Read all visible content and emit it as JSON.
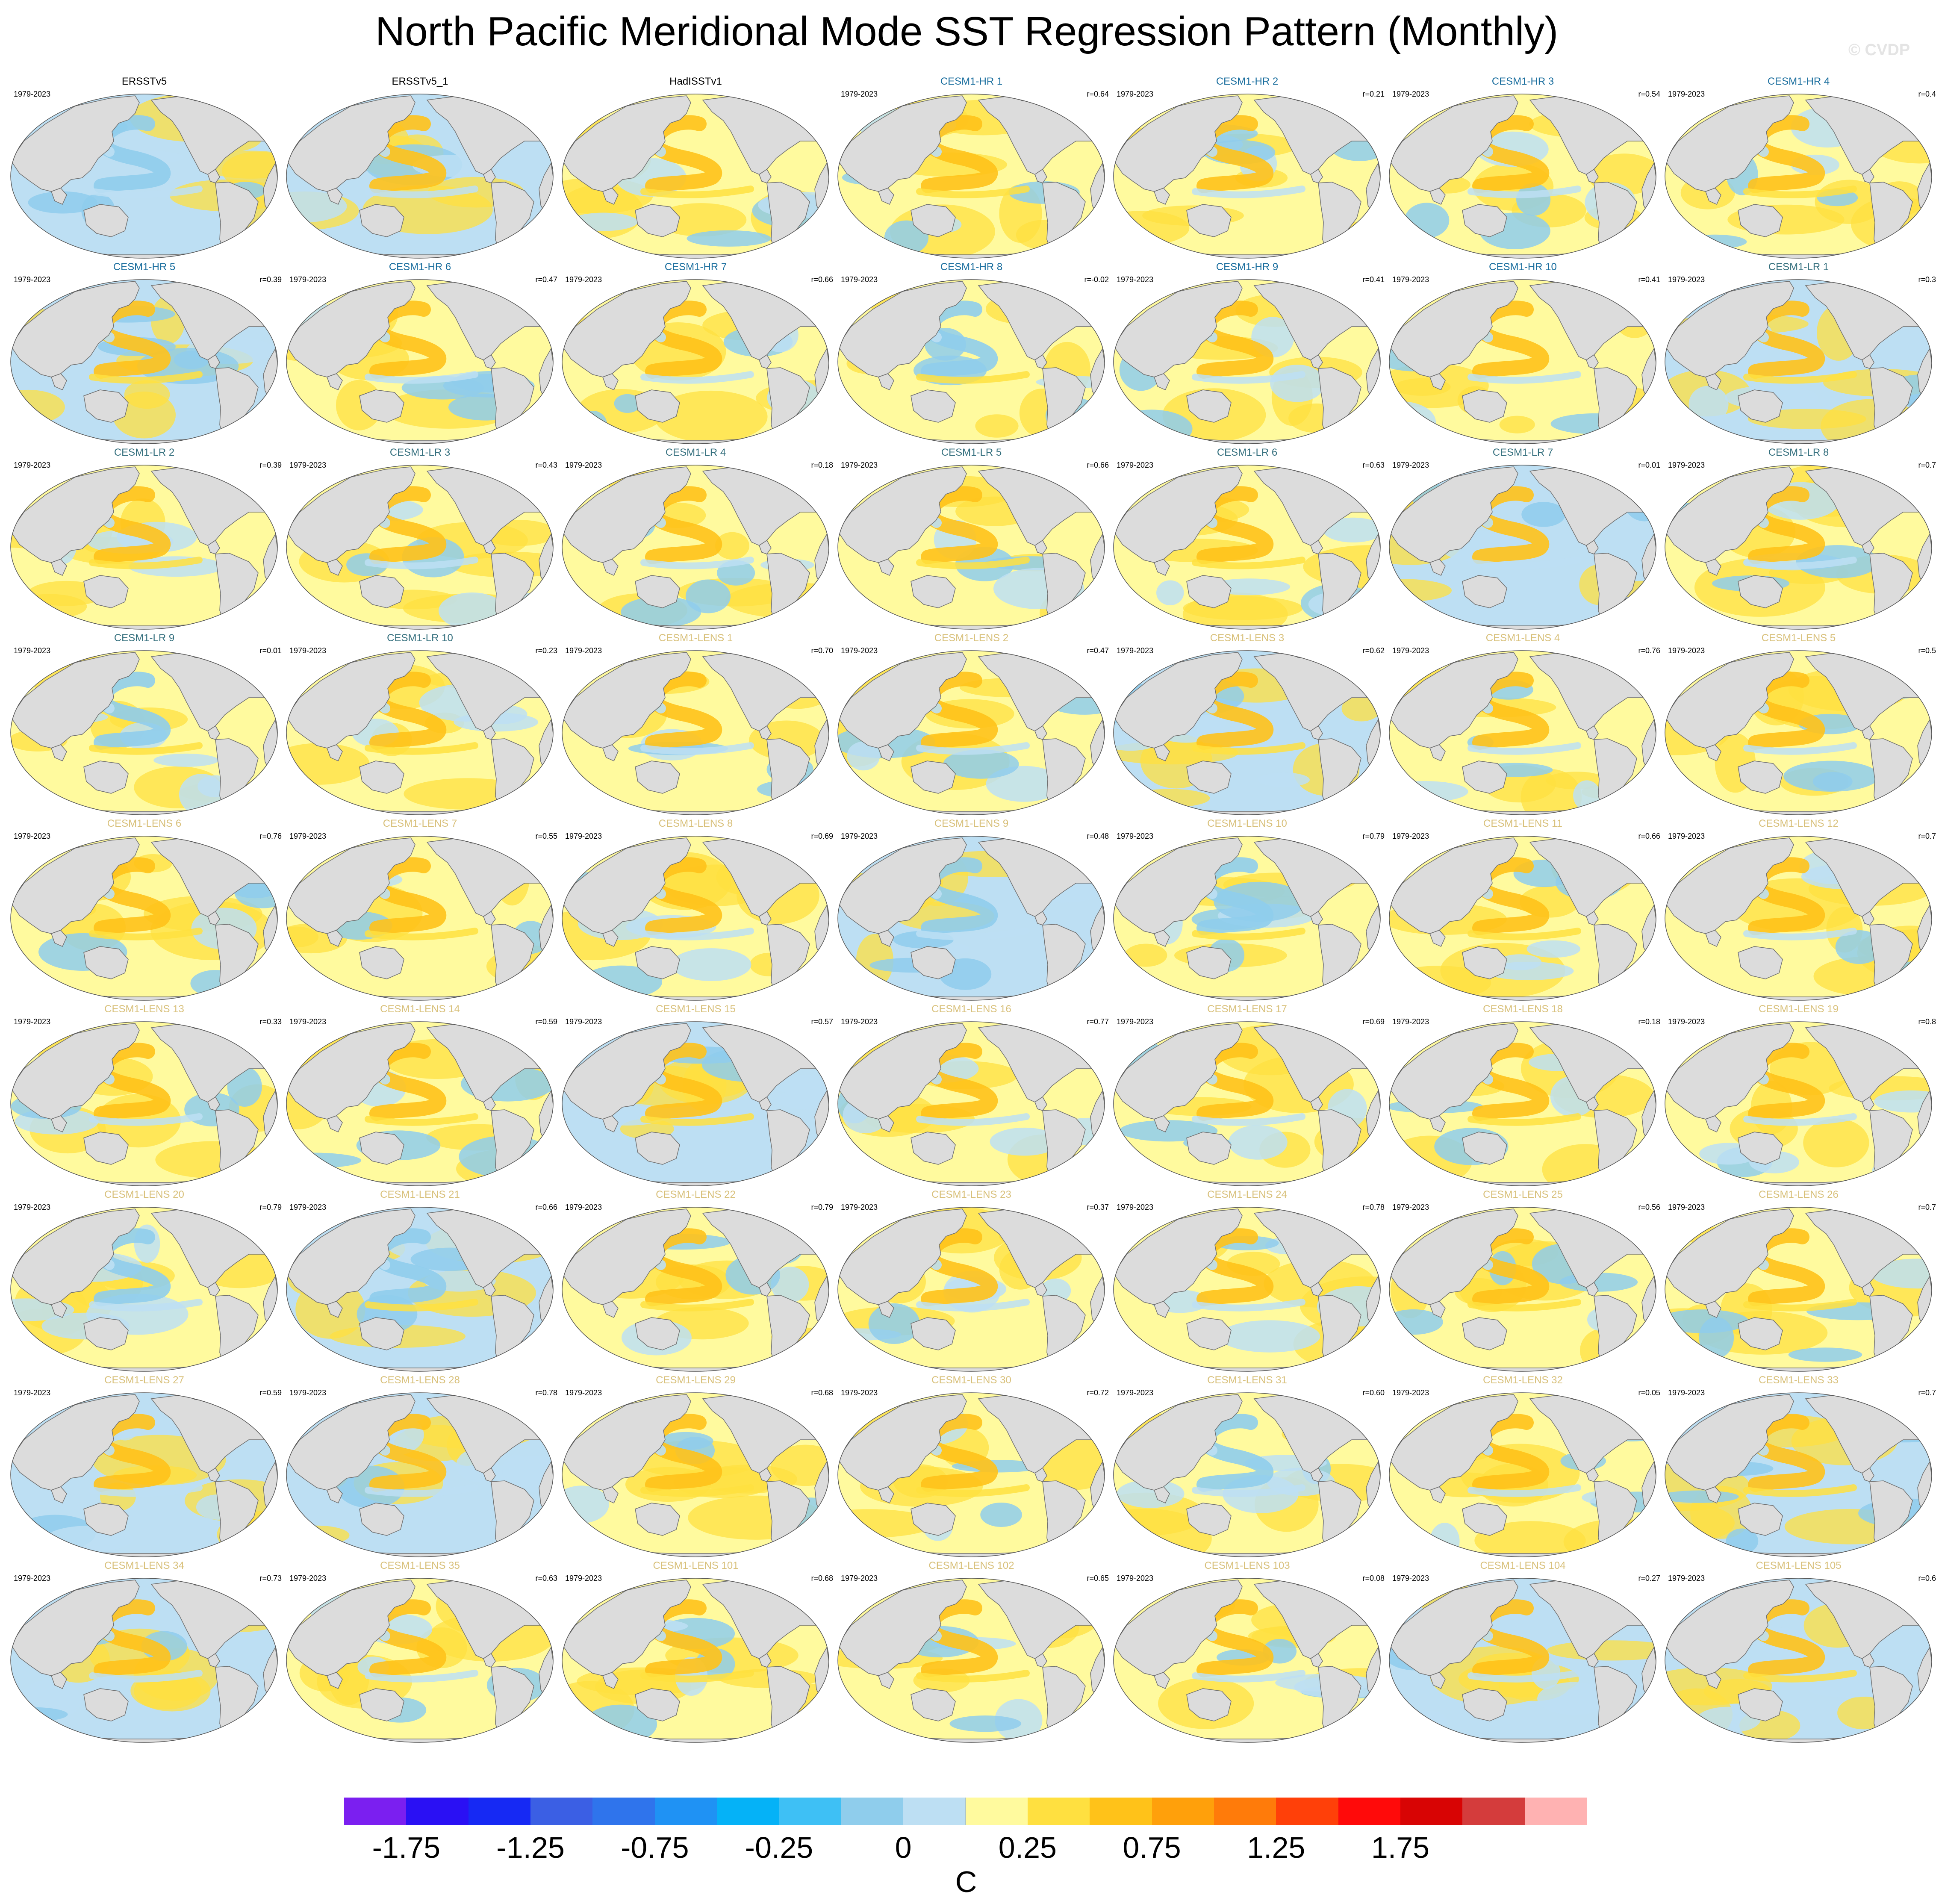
{
  "title": "North Pacific Meridional Mode SST Regression Pattern (Monthly)",
  "watermark": "© CVDP",
  "colors": {
    "obs_title": "#000000",
    "hr_title": "#1a6e9e",
    "lr_title": "#35707e",
    "lens_title": "#d8c07a",
    "land": "#dcdcdc",
    "coast": "#707070"
  },
  "panels": [
    {
      "title": "ERSSTv5",
      "group": "obs",
      "years": "1979-2023",
      "r": ""
    },
    {
      "title": "ERSSTv5_1",
      "group": "obs",
      "years": "",
      "r": ""
    },
    {
      "title": "HadISSTv1",
      "group": "obs",
      "years": "",
      "r": ""
    },
    {
      "title": "CESM1-HR 1",
      "group": "hr",
      "years": "1979-2023",
      "r": "r=0.64"
    },
    {
      "title": "CESM1-HR 2",
      "group": "hr",
      "years": "1979-2023",
      "r": "r=0.21"
    },
    {
      "title": "CESM1-HR 3",
      "group": "hr",
      "years": "1979-2023",
      "r": "r=0.54"
    },
    {
      "title": "CESM1-HR 4",
      "group": "hr",
      "years": "1979-2023",
      "r": "r=0.4"
    },
    {
      "title": "CESM1-HR 5",
      "group": "hr",
      "years": "1979-2023",
      "r": "r=0.39"
    },
    {
      "title": "CESM1-HR 6",
      "group": "hr",
      "years": "1979-2023",
      "r": "r=0.47"
    },
    {
      "title": "CESM1-HR 7",
      "group": "hr",
      "years": "1979-2023",
      "r": "r=0.66"
    },
    {
      "title": "CESM1-HR 8",
      "group": "hr",
      "years": "1979-2023",
      "r": "r=-0.02"
    },
    {
      "title": "CESM1-HR 9",
      "group": "hr",
      "years": "1979-2023",
      "r": "r=0.41"
    },
    {
      "title": "CESM1-HR 10",
      "group": "hr",
      "years": "1979-2023",
      "r": "r=0.41"
    },
    {
      "title": "CESM1-LR 1",
      "group": "lr",
      "years": "1979-2023",
      "r": "r=0.3"
    },
    {
      "title": "CESM1-LR 2",
      "group": "lr",
      "years": "1979-2023",
      "r": "r=0.39"
    },
    {
      "title": "CESM1-LR 3",
      "group": "lr",
      "years": "1979-2023",
      "r": "r=0.43"
    },
    {
      "title": "CESM1-LR 4",
      "group": "lr",
      "years": "1979-2023",
      "r": "r=0.18"
    },
    {
      "title": "CESM1-LR 5",
      "group": "lr",
      "years": "1979-2023",
      "r": "r=0.66"
    },
    {
      "title": "CESM1-LR 6",
      "group": "lr",
      "years": "1979-2023",
      "r": "r=0.63"
    },
    {
      "title": "CESM1-LR 7",
      "group": "lr",
      "years": "1979-2023",
      "r": "r=0.01"
    },
    {
      "title": "CESM1-LR 8",
      "group": "lr",
      "years": "1979-2023",
      "r": "r=0.7"
    },
    {
      "title": "CESM1-LR 9",
      "group": "lr",
      "years": "1979-2023",
      "r": "r=0.01"
    },
    {
      "title": "CESM1-LR 10",
      "group": "lr",
      "years": "1979-2023",
      "r": "r=0.23"
    },
    {
      "title": "CESM1-LENS 1",
      "group": "lens",
      "years": "1979-2023",
      "r": "r=0.70"
    },
    {
      "title": "CESM1-LENS 2",
      "group": "lens",
      "years": "1979-2023",
      "r": "r=0.47"
    },
    {
      "title": "CESM1-LENS 3",
      "group": "lens",
      "years": "1979-2023",
      "r": "r=0.62"
    },
    {
      "title": "CESM1-LENS 4",
      "group": "lens",
      "years": "1979-2023",
      "r": "r=0.76"
    },
    {
      "title": "CESM1-LENS 5",
      "group": "lens",
      "years": "1979-2023",
      "r": "r=0.5"
    },
    {
      "title": "CESM1-LENS 6",
      "group": "lens",
      "years": "1979-2023",
      "r": "r=0.76"
    },
    {
      "title": "CESM1-LENS 7",
      "group": "lens",
      "years": "1979-2023",
      "r": "r=0.55"
    },
    {
      "title": "CESM1-LENS 8",
      "group": "lens",
      "years": "1979-2023",
      "r": "r=0.69"
    },
    {
      "title": "CESM1-LENS 9",
      "group": "lens",
      "years": "1979-2023",
      "r": "r=0.48"
    },
    {
      "title": "CESM1-LENS 10",
      "group": "lens",
      "years": "1979-2023",
      "r": "r=0.79"
    },
    {
      "title": "CESM1-LENS 11",
      "group": "lens",
      "years": "1979-2023",
      "r": "r=0.66"
    },
    {
      "title": "CESM1-LENS 12",
      "group": "lens",
      "years": "1979-2023",
      "r": "r=0.7"
    },
    {
      "title": "CESM1-LENS 13",
      "group": "lens",
      "years": "1979-2023",
      "r": "r=0.33"
    },
    {
      "title": "CESM1-LENS 14",
      "group": "lens",
      "years": "1979-2023",
      "r": "r=0.59"
    },
    {
      "title": "CESM1-LENS 15",
      "group": "lens",
      "years": "1979-2023",
      "r": "r=0.57"
    },
    {
      "title": "CESM1-LENS 16",
      "group": "lens",
      "years": "1979-2023",
      "r": "r=0.77"
    },
    {
      "title": "CESM1-LENS 17",
      "group": "lens",
      "years": "1979-2023",
      "r": "r=0.69"
    },
    {
      "title": "CESM1-LENS 18",
      "group": "lens",
      "years": "1979-2023",
      "r": "r=0.18"
    },
    {
      "title": "CESM1-LENS 19",
      "group": "lens",
      "years": "1979-2023",
      "r": "r=0.8"
    },
    {
      "title": "CESM1-LENS 20",
      "group": "lens",
      "years": "1979-2023",
      "r": "r=0.79"
    },
    {
      "title": "CESM1-LENS 21",
      "group": "lens",
      "years": "1979-2023",
      "r": "r=0.66"
    },
    {
      "title": "CESM1-LENS 22",
      "group": "lens",
      "years": "1979-2023",
      "r": "r=0.79"
    },
    {
      "title": "CESM1-LENS 23",
      "group": "lens",
      "years": "1979-2023",
      "r": "r=0.37"
    },
    {
      "title": "CESM1-LENS 24",
      "group": "lens",
      "years": "1979-2023",
      "r": "r=0.78"
    },
    {
      "title": "CESM1-LENS 25",
      "group": "lens",
      "years": "1979-2023",
      "r": "r=0.56"
    },
    {
      "title": "CESM1-LENS 26",
      "group": "lens",
      "years": "1979-2023",
      "r": "r=0.7"
    },
    {
      "title": "CESM1-LENS 27",
      "group": "lens",
      "years": "1979-2023",
      "r": "r=0.59"
    },
    {
      "title": "CESM1-LENS 28",
      "group": "lens",
      "years": "1979-2023",
      "r": "r=0.78"
    },
    {
      "title": "CESM1-LENS 29",
      "group": "lens",
      "years": "1979-2023",
      "r": "r=0.68"
    },
    {
      "title": "CESM1-LENS 30",
      "group": "lens",
      "years": "1979-2023",
      "r": "r=0.72"
    },
    {
      "title": "CESM1-LENS 31",
      "group": "lens",
      "years": "1979-2023",
      "r": "r=0.60"
    },
    {
      "title": "CESM1-LENS 32",
      "group": "lens",
      "years": "1979-2023",
      "r": "r=0.05"
    },
    {
      "title": "CESM1-LENS 33",
      "group": "lens",
      "years": "1979-2023",
      "r": "r=0.7"
    },
    {
      "title": "CESM1-LENS 34",
      "group": "lens",
      "years": "1979-2023",
      "r": "r=0.73"
    },
    {
      "title": "CESM1-LENS 35",
      "group": "lens",
      "years": "1979-2023",
      "r": "r=0.63"
    },
    {
      "title": "CESM1-LENS 101",
      "group": "lens",
      "years": "1979-2023",
      "r": "r=0.68"
    },
    {
      "title": "CESM1-LENS 102",
      "group": "lens",
      "years": "1979-2023",
      "r": "r=0.65"
    },
    {
      "title": "CESM1-LENS 103",
      "group": "lens",
      "years": "1979-2023",
      "r": "r=0.08"
    },
    {
      "title": "CESM1-LENS 104",
      "group": "lens",
      "years": "1979-2023",
      "r": "r=0.27"
    },
    {
      "title": "CESM1-LENS 105",
      "group": "lens",
      "years": "1979-2023",
      "r": "r=0.6"
    }
  ],
  "chart_data": {
    "type": "heatmap",
    "title": "North Pacific Meridional Mode SST Regression Pattern (Monthly)",
    "map_projection": "global, Pacific-centered",
    "grid": "7 columns x 9 rows",
    "colorbar": {
      "unit": "C",
      "tick_labels": [
        "-1.75",
        "-1.25",
        "-0.75",
        "-0.25",
        "0",
        "0.25",
        "0.75",
        "1.25",
        "1.75"
      ],
      "tick_box_positions": [
        1,
        3,
        5,
        7,
        9,
        11,
        13,
        15,
        17
      ],
      "colors": [
        "#7b1ff0",
        "#2a10f4",
        "#1629f4",
        "#3b5fe4",
        "#2f74ec",
        "#1f92f4",
        "#05b2f7",
        "#3ec0f5",
        "#8fcdec",
        "#bddff3",
        "#fffa9e",
        "#ffe040",
        "#ffc219",
        "#ffa00b",
        "#ff7b0a",
        "#ff4009",
        "#ff0a0a",
        "#d80404",
        "#d43c3c",
        "#ffb2b2"
      ]
    },
    "panels_shown": 63,
    "dominant_pattern": "positive NE Pacific horseshoe extending SW toward central equatorial Pacific; weaker negative anomalies in western Pacific"
  }
}
